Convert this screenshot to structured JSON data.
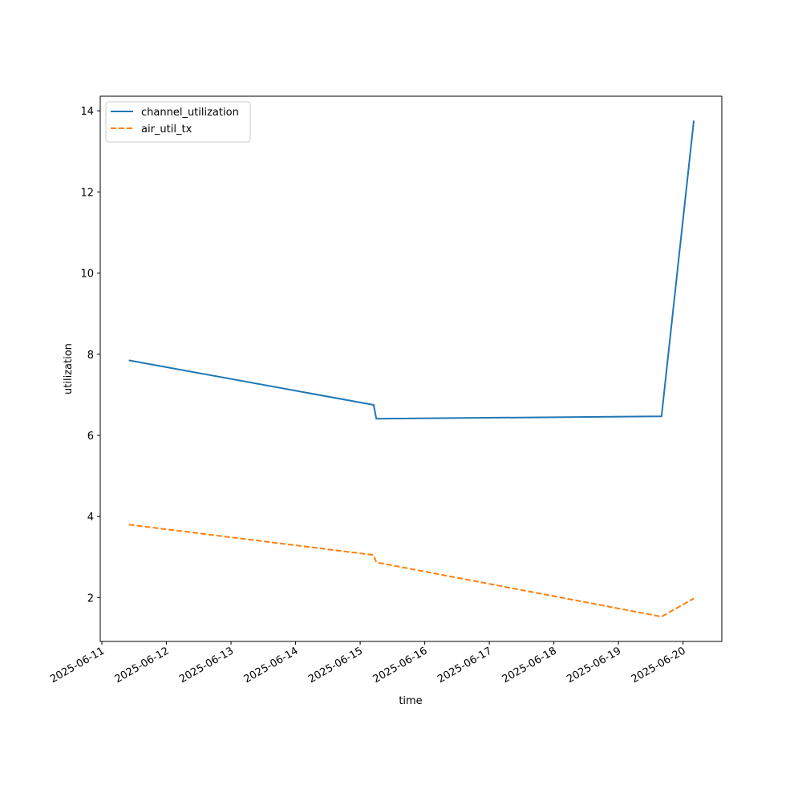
{
  "chart_data": {
    "type": "line",
    "x_label": "time",
    "y_label": "utilization",
    "x": [
      "2025-06-11T10:00",
      "2025-06-15T05:00",
      "2025-06-15T06:00",
      "2025-06-19T16:00",
      "2025-06-20T04:00"
    ],
    "series": [
      {
        "name": "channel_utilization",
        "color": "#1f77b4",
        "dash": "solid",
        "values": [
          7.85,
          6.75,
          6.41,
          6.47,
          13.76
        ]
      },
      {
        "name": "air_util_tx",
        "color": "#ff7f0e",
        "dash": "dashed",
        "values": [
          3.8,
          3.05,
          2.87,
          1.53,
          1.98
        ]
      }
    ],
    "xlim": [
      "2025-06-10T23:24",
      "2025-06-20T14:24"
    ],
    "xticks": [
      "2025-06-11",
      "2025-06-12",
      "2025-06-13",
      "2025-06-14",
      "2025-06-15",
      "2025-06-16",
      "2025-06-17",
      "2025-06-18",
      "2025-06-19",
      "2025-06-20"
    ],
    "ylim": [
      0.92,
      14.36
    ],
    "yticks": [
      2,
      4,
      6,
      8,
      10,
      12,
      14
    ],
    "grid": false,
    "legend": "upper left"
  }
}
